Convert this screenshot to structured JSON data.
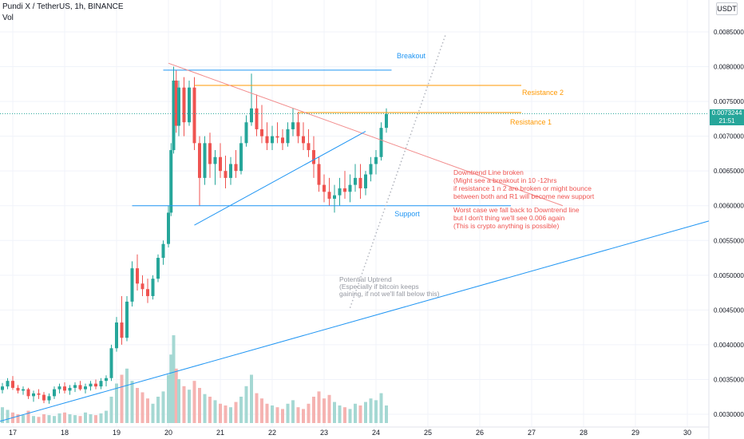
{
  "header": {
    "title": "Pundi X / TetherUS, 1h, BINANCE",
    "volume_label": "Vol"
  },
  "currency_button": "USDT",
  "price_tag": {
    "price": "0.0073244",
    "countdown": "21:51"
  },
  "colors": {
    "up": "#26a69a",
    "down": "#ef5350",
    "blue": "#2196f3",
    "orange": "#ff9800",
    "red_annotation": "#ef5350",
    "gray_text": "#9598a1",
    "axis_text": "#131722"
  },
  "chart_data": {
    "type": "candlestick",
    "x_ticks": [
      "17",
      "18",
      "19",
      "20",
      "21",
      "22",
      "23",
      "24",
      "25",
      "26",
      "27",
      "28",
      "29",
      "30"
    ],
    "y_ticks": [
      "0.0085000",
      "0.0080000",
      "0.0075000",
      "0.0070000",
      "0.0065000",
      "0.0060000",
      "0.0055000",
      "0.0050000",
      "0.0045000",
      "0.0040000",
      "0.0035000",
      "0.0030000"
    ],
    "ylim": [
      0.0028,
      0.0087
    ],
    "xlim": [
      16.8,
      30.6
    ],
    "last_price": 0.0073244,
    "candles": [
      [
        16.8,
        0.00335,
        0.00345,
        0.0033,
        0.0034
      ],
      [
        16.9,
        0.0034,
        0.00352,
        0.00336,
        0.00348
      ],
      [
        17.0,
        0.00348,
        0.00355,
        0.00335,
        0.00338
      ],
      [
        17.1,
        0.00338,
        0.00342,
        0.0033,
        0.00334
      ],
      [
        17.2,
        0.00334,
        0.0034,
        0.00328,
        0.00336
      ],
      [
        17.3,
        0.00336,
        0.00338,
        0.00322,
        0.00326
      ],
      [
        17.4,
        0.00326,
        0.00334,
        0.00318,
        0.0033
      ],
      [
        17.5,
        0.0033,
        0.00336,
        0.00322,
        0.00328
      ],
      [
        17.6,
        0.00328,
        0.00332,
        0.00316,
        0.0032
      ],
      [
        17.7,
        0.0032,
        0.0033,
        0.00315,
        0.00326
      ],
      [
        17.8,
        0.00326,
        0.0034,
        0.00322,
        0.00336
      ],
      [
        17.9,
        0.00336,
        0.00344,
        0.0033,
        0.0034
      ],
      [
        18.0,
        0.0034,
        0.00346,
        0.0033,
        0.00334
      ],
      [
        18.1,
        0.00334,
        0.00342,
        0.00328,
        0.00338
      ],
      [
        18.2,
        0.00338,
        0.00346,
        0.00332,
        0.00342
      ],
      [
        18.3,
        0.00342,
        0.00348,
        0.00334,
        0.00336
      ],
      [
        18.4,
        0.00336,
        0.00344,
        0.0033,
        0.0034
      ],
      [
        18.5,
        0.0034,
        0.00348,
        0.00334,
        0.00344
      ],
      [
        18.6,
        0.00344,
        0.0035,
        0.00336,
        0.0034
      ],
      [
        18.7,
        0.0034,
        0.00352,
        0.00336,
        0.00348
      ],
      [
        18.8,
        0.00348,
        0.00356,
        0.0034,
        0.00352
      ],
      [
        18.9,
        0.00352,
        0.004,
        0.00348,
        0.00395
      ],
      [
        19.0,
        0.00395,
        0.0044,
        0.0039,
        0.00432
      ],
      [
        19.1,
        0.00432,
        0.0047,
        0.004,
        0.0041
      ],
      [
        19.2,
        0.0041,
        0.0047,
        0.00405,
        0.00462
      ],
      [
        19.3,
        0.00462,
        0.0052,
        0.00455,
        0.0051
      ],
      [
        19.4,
        0.0051,
        0.0053,
        0.00478,
        0.00488
      ],
      [
        19.5,
        0.00488,
        0.005,
        0.0047,
        0.0048
      ],
      [
        19.6,
        0.0048,
        0.00495,
        0.0046,
        0.0047
      ],
      [
        19.7,
        0.0047,
        0.005,
        0.00465,
        0.00495
      ],
      [
        19.8,
        0.00495,
        0.0053,
        0.0049,
        0.00525
      ],
      [
        19.9,
        0.00525,
        0.0055,
        0.00515,
        0.00545
      ],
      [
        20.0,
        0.00545,
        0.006,
        0.0054,
        0.0059
      ],
      [
        20.05,
        0.0059,
        0.0069,
        0.00585,
        0.0068
      ],
      [
        20.1,
        0.0068,
        0.008,
        0.00675,
        0.0078
      ],
      [
        20.15,
        0.0078,
        0.00795,
        0.00705,
        0.00715
      ],
      [
        20.2,
        0.00715,
        0.0078,
        0.007,
        0.0077
      ],
      [
        20.3,
        0.0077,
        0.00785,
        0.007,
        0.0072
      ],
      [
        20.4,
        0.0072,
        0.0078,
        0.00715,
        0.0077
      ],
      [
        20.5,
        0.0077,
        0.00785,
        0.0068,
        0.0069
      ],
      [
        20.6,
        0.0069,
        0.007,
        0.006,
        0.0064
      ],
      [
        20.7,
        0.0064,
        0.007,
        0.0063,
        0.0069
      ],
      [
        20.8,
        0.0069,
        0.00705,
        0.0064,
        0.0066
      ],
      [
        20.9,
        0.0066,
        0.0068,
        0.0063,
        0.0067
      ],
      [
        21.0,
        0.0067,
        0.0069,
        0.0064,
        0.0065
      ],
      [
        21.1,
        0.0065,
        0.00672,
        0.00625,
        0.0064
      ],
      [
        21.2,
        0.0064,
        0.0067,
        0.0063,
        0.0066
      ],
      [
        21.3,
        0.0066,
        0.0068,
        0.0064,
        0.0065
      ],
      [
        21.4,
        0.0065,
        0.007,
        0.00645,
        0.0069
      ],
      [
        21.5,
        0.0069,
        0.0073,
        0.00685,
        0.0072
      ],
      [
        21.6,
        0.0072,
        0.0079,
        0.00715,
        0.0074
      ],
      [
        21.7,
        0.0074,
        0.0076,
        0.007,
        0.0071
      ],
      [
        21.8,
        0.0071,
        0.00745,
        0.0069,
        0.007
      ],
      [
        21.9,
        0.007,
        0.0072,
        0.0068,
        0.0069
      ],
      [
        22.0,
        0.0069,
        0.00715,
        0.0068,
        0.007
      ],
      [
        22.1,
        0.007,
        0.0072,
        0.0069,
        0.00698
      ],
      [
        22.2,
        0.00698,
        0.0071,
        0.0068,
        0.0069
      ],
      [
        22.3,
        0.0069,
        0.0072,
        0.00685,
        0.0071
      ],
      [
        22.4,
        0.0071,
        0.0074,
        0.007,
        0.0072
      ],
      [
        22.5,
        0.0072,
        0.00735,
        0.0069,
        0.007
      ],
      [
        22.6,
        0.007,
        0.0072,
        0.0068,
        0.0069
      ],
      [
        22.7,
        0.0069,
        0.0071,
        0.0067,
        0.0068
      ],
      [
        22.8,
        0.0068,
        0.007,
        0.0064,
        0.0066
      ],
      [
        22.9,
        0.0066,
        0.0067,
        0.0062,
        0.0063
      ],
      [
        23.0,
        0.0063,
        0.00645,
        0.00605,
        0.0062
      ],
      [
        23.1,
        0.0062,
        0.0064,
        0.006,
        0.0061
      ],
      [
        23.2,
        0.0061,
        0.0063,
        0.0059,
        0.00615
      ],
      [
        23.3,
        0.00615,
        0.0064,
        0.006,
        0.00625
      ],
      [
        23.4,
        0.00625,
        0.0065,
        0.0061,
        0.0062
      ],
      [
        23.5,
        0.0062,
        0.00645,
        0.00605,
        0.0063
      ],
      [
        23.6,
        0.0063,
        0.0066,
        0.0062,
        0.0064
      ],
      [
        23.7,
        0.0064,
        0.0066,
        0.0061,
        0.00625
      ],
      [
        23.8,
        0.00625,
        0.0065,
        0.00615,
        0.00645
      ],
      [
        23.9,
        0.00645,
        0.0067,
        0.00635,
        0.0066
      ],
      [
        24.0,
        0.0066,
        0.0068,
        0.00645,
        0.0067
      ],
      [
        24.1,
        0.0067,
        0.0072,
        0.00665,
        0.00712
      ],
      [
        24.2,
        0.00712,
        0.0074,
        0.00705,
        0.00732
      ]
    ],
    "volume_max": 1.0,
    "volumes": [
      0.18,
      0.15,
      0.12,
      0.1,
      0.09,
      0.14,
      0.08,
      0.07,
      0.1,
      0.09,
      0.08,
      0.11,
      0.12,
      0.1,
      0.09,
      0.08,
      0.12,
      0.1,
      0.09,
      0.11,
      0.14,
      0.3,
      0.45,
      0.55,
      0.62,
      0.48,
      0.4,
      0.35,
      0.28,
      0.22,
      0.3,
      0.36,
      0.55,
      0.78,
      1.0,
      0.62,
      0.5,
      0.42,
      0.38,
      0.48,
      0.4,
      0.33,
      0.3,
      0.26,
      0.22,
      0.2,
      0.18,
      0.24,
      0.3,
      0.42,
      0.55,
      0.34,
      0.28,
      0.22,
      0.2,
      0.18,
      0.16,
      0.22,
      0.26,
      0.18,
      0.16,
      0.22,
      0.3,
      0.36,
      0.28,
      0.32,
      0.24,
      0.2,
      0.18,
      0.16,
      0.22,
      0.2,
      0.24,
      0.28,
      0.26,
      0.34,
      0.2
    ]
  },
  "annotations": {
    "breakout": "Breakout",
    "resistance2": "Resistance 2",
    "resistance1": "Resistance 1",
    "support": "Support",
    "downtrend_note": [
      "Downtrend Line broken",
      "(Might see a breakout in 10 -12hrs",
      "if resistance 1 n 2 are broken or might bounce",
      "between both and R1 will become new support"
    ],
    "worst_case_note": [
      "Worst case we fall back to Downtrend line",
      "but I don't thing we'll see 0.006 again",
      "(This is crypto anything is possible)"
    ],
    "uptrend_note": [
      "Potential Uptrend",
      "(Especially if bitcoin keeps",
      "gaining, if not we'll fall below this)"
    ]
  }
}
